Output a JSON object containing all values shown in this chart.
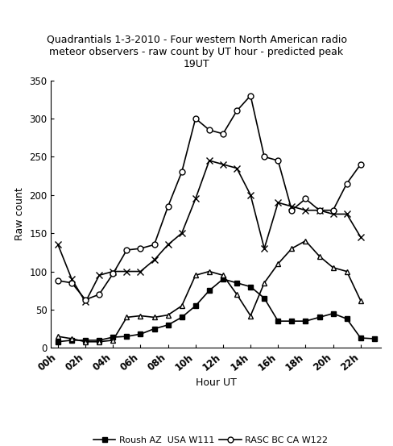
{
  "title": "Quadrantials 1-3-2010 - Four western North American radio\nmeteor observers - raw count by UT hour - predicted peak\n19UT",
  "xlabel": "Hour UT",
  "ylabel": "Raw count",
  "hours": [
    0,
    1,
    2,
    3,
    4,
    5,
    6,
    7,
    8,
    9,
    10,
    11,
    12,
    13,
    14,
    15,
    16,
    17,
    18,
    19,
    20,
    21,
    22,
    23
  ],
  "hour_labels": [
    "00h",
    "02h",
    "04h",
    "06h",
    "08h",
    "10h",
    "12h",
    "14h",
    "16h",
    "18h",
    "20h",
    "22h"
  ],
  "roush": [
    8,
    10,
    10,
    10,
    14,
    15,
    18,
    25,
    30,
    40,
    55,
    75,
    90,
    85,
    80,
    65,
    35,
    35,
    35,
    40,
    45,
    38,
    13,
    12
  ],
  "brower": [
    135,
    90,
    60,
    95,
    100,
    100,
    100,
    115,
    135,
    150,
    195,
    245,
    240,
    235,
    200,
    130,
    190,
    185,
    180,
    180,
    175,
    175,
    145,
    null
  ],
  "rasc": [
    88,
    85,
    63,
    70,
    97,
    128,
    130,
    135,
    185,
    230,
    300,
    285,
    280,
    310,
    330,
    250,
    245,
    180,
    195,
    180,
    180,
    215,
    240,
    null
  ],
  "fisher": [
    15,
    12,
    8,
    8,
    10,
    40,
    42,
    40,
    43,
    55,
    95,
    100,
    95,
    70,
    42,
    85,
    110,
    130,
    140,
    120,
    105,
    100,
    62,
    null
  ],
  "ylim": [
    0,
    350
  ],
  "yticks": [
    0,
    50,
    100,
    150,
    200,
    250,
    300,
    350
  ],
  "xticks": [
    0,
    2,
    4,
    6,
    8,
    10,
    12,
    14,
    16,
    18,
    20,
    22
  ],
  "title_fontsize": 9,
  "axis_label_fontsize": 9,
  "tick_fontsize": 8.5,
  "legend_fontsize": 8,
  "background_color": "#ffffff",
  "linewidth": 1.2,
  "marker_size": 4
}
